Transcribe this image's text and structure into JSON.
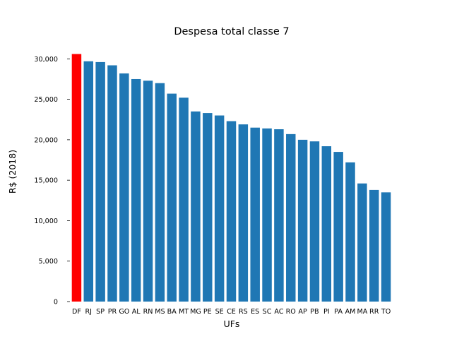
{
  "chart_data": {
    "type": "bar",
    "title": "Despesa total classe 7",
    "xlabel": "UFs",
    "ylabel": "R$ (2018)",
    "categories": [
      "DF",
      "RJ",
      "SP",
      "PR",
      "GO",
      "AL",
      "RN",
      "MS",
      "BA",
      "MT",
      "MG",
      "PE",
      "SE",
      "CE",
      "RS",
      "ES",
      "SC",
      "AC",
      "RO",
      "AP",
      "PB",
      "PI",
      "PA",
      "AM",
      "MA",
      "RR",
      "TO"
    ],
    "values": [
      30600,
      29700,
      29600,
      29200,
      28200,
      27500,
      27300,
      27000,
      25700,
      25200,
      23500,
      23300,
      23000,
      22300,
      21900,
      21500,
      21400,
      21300,
      20700,
      20000,
      19800,
      19200,
      18500,
      17200,
      14600,
      13800,
      13500
    ],
    "highlight": "DF",
    "colors": {
      "bar": "#1f77b4",
      "highlight": "#ff0000"
    },
    "ylim": [
      0,
      31600
    ],
    "yticks": [
      0,
      5000,
      10000,
      15000,
      20000,
      25000,
      30000
    ],
    "ytick_labels": [
      "0",
      "5,000",
      "10,000",
      "15,000",
      "20,000",
      "25,000",
      "30,000"
    ],
    "grid": false
  }
}
